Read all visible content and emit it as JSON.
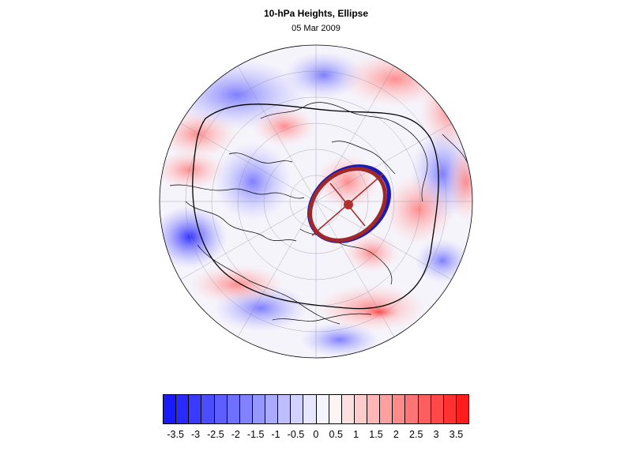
{
  "header": {
    "title": "10-hPa Heights, Ellipse",
    "date": "05 Mar 2009"
  },
  "map": {
    "projection": "polar-stereographic-north",
    "field": "10-hPa height anomaly",
    "ellipse_colors": {
      "outer": "#1a1ab4",
      "inner": "#a02828"
    },
    "contour_color": "#000000"
  },
  "colorbar": {
    "colors": [
      "#1a1aff",
      "#2a2aff",
      "#3a3aff",
      "#4c4cff",
      "#5e5eff",
      "#7070ff",
      "#8282ff",
      "#9696ff",
      "#aaaaff",
      "#bebeff",
      "#d2d2ff",
      "#e6e6ff",
      "#f4f4ff",
      "#fff4f4",
      "#ffe0e0",
      "#ffcccc",
      "#ffb6b6",
      "#ffa0a0",
      "#ff8a8a",
      "#ff7474",
      "#ff5e5e",
      "#ff4848",
      "#ff3232",
      "#ff1c1c"
    ],
    "tick_labels": [
      "-3.5",
      "-3",
      "-2.5",
      "-2",
      "-1.5",
      "-1",
      "-0.5",
      "0",
      "0.5",
      "1",
      "1.5",
      "2",
      "2.5",
      "3",
      "3.5"
    ]
  }
}
